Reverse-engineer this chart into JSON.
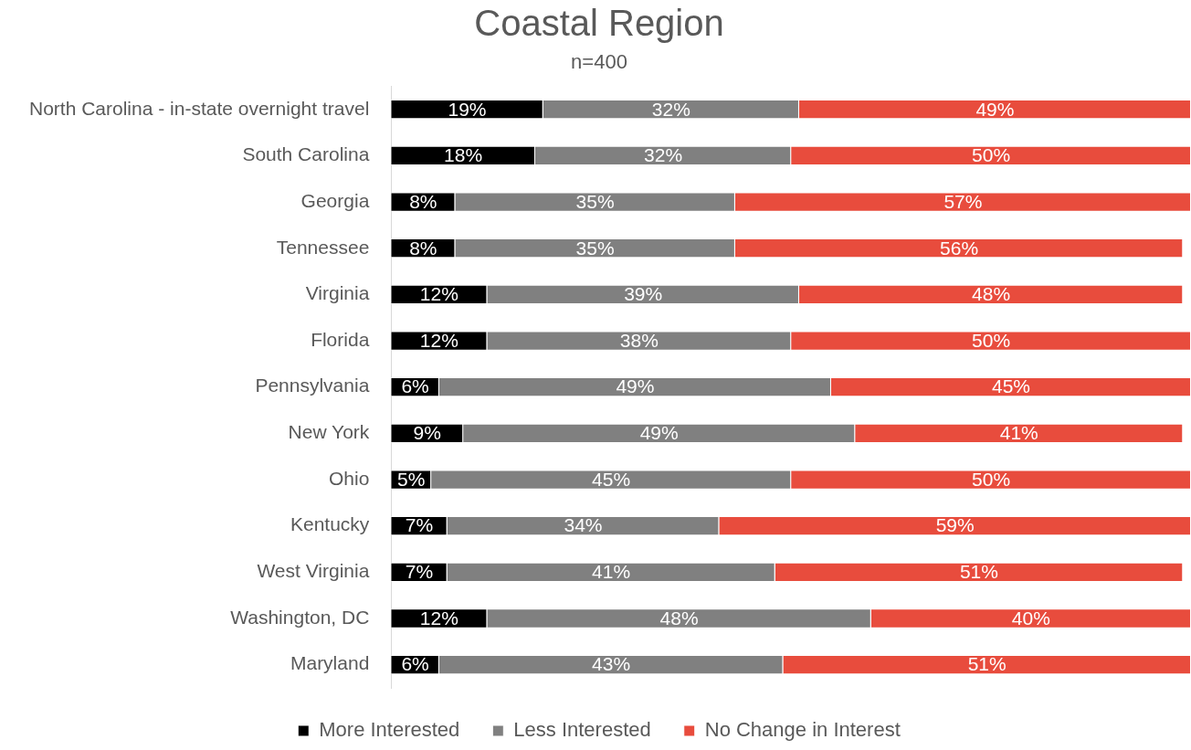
{
  "chart_data": {
    "type": "bar",
    "orientation": "horizontal",
    "stacked": true,
    "title": "Coastal Region",
    "subtitle": "n=400",
    "legend": "bottom",
    "categories": [
      "North Carolina - in-state overnight travel",
      "South Carolina",
      "Georgia",
      "Tennessee",
      "Virginia",
      "Florida",
      "Pennsylvania",
      "New York",
      "Ohio",
      "Kentucky",
      "West Virginia",
      "Washington, DC",
      "Maryland"
    ],
    "series": [
      {
        "name": "More Interested",
        "color": "#000000",
        "values": [
          19,
          18,
          8,
          8,
          12,
          12,
          6,
          9,
          5,
          7,
          7,
          12,
          6
        ],
        "value_labels": [
          "19%",
          "18%",
          "8%",
          "8%",
          "12%",
          "12%",
          "6%",
          "9%",
          "5%",
          "7%",
          "7%",
          "12%",
          "6%"
        ]
      },
      {
        "name": "Less Interested",
        "color": "#808080",
        "values": [
          32,
          32,
          35,
          35,
          39,
          38,
          49,
          49,
          45,
          34,
          41,
          48,
          43
        ],
        "value_labels": [
          "32%",
          "32%",
          "35%",
          "35%",
          "39%",
          "38%",
          "49%",
          "49%",
          "45%",
          "34%",
          "41%",
          "48%",
          "43%"
        ]
      },
      {
        "name": "No Change in Interest",
        "color": "#e84c3d",
        "values": [
          49,
          50,
          57,
          56,
          48,
          50,
          45,
          41,
          50,
          59,
          51,
          40,
          51
        ],
        "value_labels": [
          "49%",
          "50%",
          "57%",
          "56%",
          "48%",
          "50%",
          "45%",
          "41%",
          "50%",
          "59%",
          "51%",
          "40%",
          "51%"
        ]
      }
    ]
  }
}
